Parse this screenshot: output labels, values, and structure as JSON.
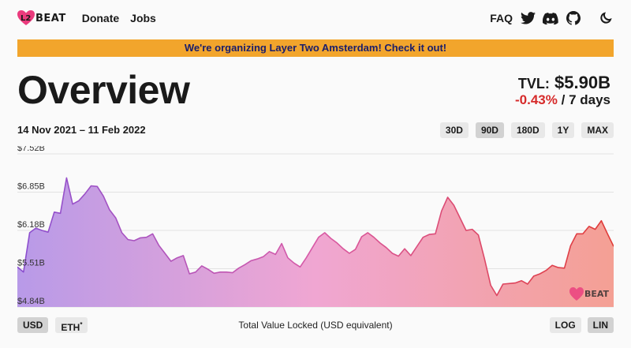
{
  "nav": {
    "logo_text": "BEAT",
    "links": [
      {
        "label": "Donate"
      },
      {
        "label": "Jobs"
      }
    ],
    "faq": "FAQ",
    "icons": [
      "twitter-icon",
      "discord-icon",
      "github-icon",
      "moon-icon"
    ]
  },
  "banner": "We're organizing Layer Two Amsterdam! Check it out!",
  "title": "Overview",
  "tvl": {
    "label": "TVL:",
    "value": "$5.90B",
    "change": "-0.43%",
    "period": "/ 7 days"
  },
  "date_range": "14 Nov 2021 – 11 Feb 2022",
  "ranges": [
    {
      "label": "30D",
      "active": false
    },
    {
      "label": "90D",
      "active": true
    },
    {
      "label": "180D",
      "active": false
    },
    {
      "label": "1Y",
      "active": false
    },
    {
      "label": "MAX",
      "active": false
    }
  ],
  "units": [
    {
      "label": "USD",
      "active": true
    },
    {
      "label": "ETH",
      "sup": "*",
      "active": false
    }
  ],
  "scales": [
    {
      "label": "LOG",
      "active": false
    },
    {
      "label": "LIN",
      "active": true
    }
  ],
  "caption": "Total Value Locked (USD equivalent)",
  "watermark": "BEAT",
  "colors": {
    "accent_start": "#9d5fd6",
    "accent_mid": "#e06aa8",
    "accent_end": "#e04040",
    "banner": "#f2a52c",
    "negative": "#d62a2a"
  },
  "chart_data": {
    "type": "area",
    "yticks": [
      "$7.52B",
      "$6.85B",
      "$6.18B",
      "$5.51B",
      "$4.84B"
    ],
    "ylim": [
      4.84,
      7.52
    ],
    "x_start": "14 Nov 2021",
    "x_end": "11 Feb 2022",
    "values": [
      5.54,
      5.45,
      6.14,
      6.22,
      6.18,
      6.15,
      6.5,
      6.48,
      7.1,
      6.64,
      6.7,
      6.82,
      6.96,
      6.95,
      6.78,
      6.54,
      6.4,
      6.14,
      6.02,
      6.0,
      6.05,
      6.06,
      6.12,
      5.92,
      5.78,
      5.64,
      5.7,
      5.74,
      5.42,
      5.45,
      5.56,
      5.5,
      5.43,
      5.45,
      5.45,
      5.44,
      5.52,
      5.58,
      5.65,
      5.68,
      5.72,
      5.81,
      5.76,
      5.95,
      5.7,
      5.61,
      5.54,
      5.7,
      5.88,
      6.06,
      6.14,
      6.04,
      5.96,
      5.86,
      5.78,
      5.85,
      6.07,
      6.14,
      6.06,
      5.96,
      5.88,
      5.78,
      5.73,
      5.86,
      5.74,
      5.9,
      6.06,
      6.11,
      6.12,
      6.52,
      6.76,
      6.62,
      6.4,
      6.18,
      6.2,
      6.1,
      5.68,
      5.22,
      5.04,
      5.24,
      5.25,
      5.26,
      5.3,
      5.24,
      5.38,
      5.42,
      5.48,
      5.57,
      5.53,
      5.52,
      5.91,
      6.12,
      6.12,
      6.25,
      6.2,
      6.35,
      6.12,
      5.9
    ]
  }
}
